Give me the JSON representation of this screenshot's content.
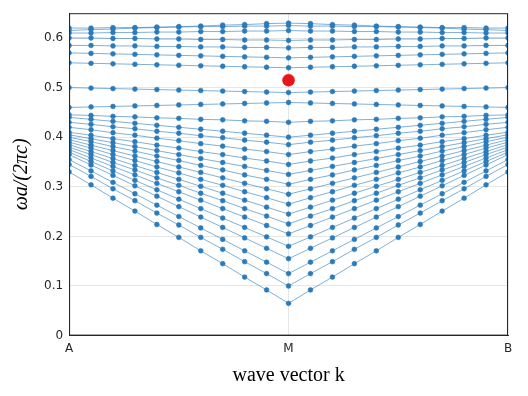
{
  "chart_data": {
    "type": "line",
    "x_label": "wave vector k",
    "y_label": "ωa/(2πc)",
    "categories": [
      "A",
      null,
      null,
      null,
      null,
      null,
      null,
      null,
      null,
      null,
      "M",
      null,
      null,
      null,
      null,
      null,
      null,
      null,
      null,
      null,
      "B"
    ],
    "ylim": [
      0,
      0.65
    ],
    "yticks": [
      0,
      0.1,
      0.2,
      0.3,
      0.4,
      0.5,
      0.6
    ],
    "grid": true,
    "color": "#2b7bba",
    "marker": "circle",
    "line_style": "solid",
    "series": [
      {
        "values": [
          0.33,
          0.304,
          0.277,
          0.251,
          0.224,
          0.198,
          0.171,
          0.145,
          0.118,
          0.092,
          0.065,
          0.092,
          0.118,
          0.145,
          0.171,
          0.198,
          0.224,
          0.251,
          0.277,
          0.304,
          0.33
        ]
      },
      {
        "values": [
          0.345,
          0.321,
          0.296,
          0.272,
          0.247,
          0.223,
          0.198,
          0.174,
          0.149,
          0.125,
          0.1,
          0.125,
          0.149,
          0.174,
          0.198,
          0.223,
          0.247,
          0.272,
          0.296,
          0.321,
          0.345
        ]
      },
      {
        "values": [
          0.355,
          0.332,
          0.309,
          0.286,
          0.263,
          0.24,
          0.217,
          0.194,
          0.171,
          0.148,
          0.125,
          0.148,
          0.171,
          0.194,
          0.217,
          0.24,
          0.263,
          0.286,
          0.309,
          0.332,
          0.355
        ]
      },
      {
        "values": [
          0.365,
          0.344,
          0.323,
          0.302,
          0.281,
          0.26,
          0.239,
          0.218,
          0.197,
          0.176,
          0.155,
          0.176,
          0.197,
          0.218,
          0.239,
          0.26,
          0.281,
          0.302,
          0.323,
          0.344,
          0.365
        ]
      },
      {
        "values": [
          0.37,
          0.351,
          0.332,
          0.313,
          0.294,
          0.275,
          0.256,
          0.237,
          0.218,
          0.199,
          0.18,
          0.199,
          0.218,
          0.237,
          0.256,
          0.275,
          0.294,
          0.313,
          0.332,
          0.351,
          0.37
        ]
      },
      {
        "values": [
          0.375,
          0.358,
          0.341,
          0.324,
          0.307,
          0.29,
          0.273,
          0.256,
          0.239,
          0.222,
          0.205,
          0.222,
          0.239,
          0.256,
          0.273,
          0.29,
          0.307,
          0.324,
          0.341,
          0.358,
          0.375
        ]
      },
      {
        "values": [
          0.38,
          0.365,
          0.349,
          0.334,
          0.318,
          0.303,
          0.287,
          0.272,
          0.256,
          0.241,
          0.225,
          0.241,
          0.256,
          0.272,
          0.287,
          0.303,
          0.318,
          0.334,
          0.349,
          0.365,
          0.38
        ]
      },
      {
        "values": [
          0.385,
          0.371,
          0.357,
          0.343,
          0.329,
          0.315,
          0.301,
          0.287,
          0.273,
          0.259,
          0.245,
          0.259,
          0.273,
          0.287,
          0.301,
          0.315,
          0.329,
          0.343,
          0.357,
          0.371,
          0.385
        ]
      },
      {
        "values": [
          0.39,
          0.378,
          0.365,
          0.353,
          0.34,
          0.328,
          0.315,
          0.303,
          0.29,
          0.278,
          0.265,
          0.278,
          0.29,
          0.303,
          0.315,
          0.328,
          0.34,
          0.353,
          0.365,
          0.378,
          0.39
        ]
      },
      {
        "values": [
          0.395,
          0.384,
          0.373,
          0.362,
          0.351,
          0.34,
          0.329,
          0.318,
          0.307,
          0.296,
          0.285,
          0.296,
          0.307,
          0.318,
          0.329,
          0.34,
          0.351,
          0.362,
          0.373,
          0.384,
          0.395
        ]
      },
      {
        "values": [
          0.4,
          0.391,
          0.381,
          0.372,
          0.362,
          0.353,
          0.343,
          0.334,
          0.324,
          0.315,
          0.305,
          0.315,
          0.324,
          0.334,
          0.343,
          0.353,
          0.362,
          0.372,
          0.381,
          0.391,
          0.4
        ]
      },
      {
        "values": [
          0.405,
          0.397,
          0.389,
          0.381,
          0.373,
          0.365,
          0.357,
          0.349,
          0.341,
          0.333,
          0.325,
          0.333,
          0.341,
          0.349,
          0.357,
          0.365,
          0.373,
          0.381,
          0.389,
          0.397,
          0.405
        ]
      },
      {
        "values": [
          0.41,
          0.404,
          0.397,
          0.391,
          0.384,
          0.378,
          0.371,
          0.365,
          0.358,
          0.352,
          0.345,
          0.352,
          0.358,
          0.365,
          0.371,
          0.378,
          0.384,
          0.391,
          0.397,
          0.404,
          0.41
        ]
      },
      {
        "values": [
          0.42,
          0.415,
          0.409,
          0.404,
          0.398,
          0.393,
          0.387,
          0.382,
          0.376,
          0.371,
          0.365,
          0.371,
          0.376,
          0.382,
          0.387,
          0.393,
          0.398,
          0.404,
          0.409,
          0.415,
          0.42
        ]
      },
      {
        "values": [
          0.43,
          0.426,
          0.421,
          0.417,
          0.412,
          0.408,
          0.403,
          0.399,
          0.394,
          0.39,
          0.385,
          0.39,
          0.394,
          0.399,
          0.403,
          0.408,
          0.412,
          0.417,
          0.421,
          0.426,
          0.43
        ]
      },
      {
        "values": [
          0.44,
          0.436,
          0.432,
          0.428,
          0.424,
          0.42,
          0.416,
          0.412,
          0.408,
          0.404,
          0.4,
          0.404,
          0.408,
          0.412,
          0.416,
          0.42,
          0.424,
          0.428,
          0.432,
          0.436,
          0.44
        ]
      },
      {
        "values": [
          0.445,
          0.444,
          0.442,
          0.441,
          0.439,
          0.438,
          0.436,
          0.435,
          0.433,
          0.432,
          0.43,
          0.432,
          0.433,
          0.435,
          0.436,
          0.438,
          0.439,
          0.441,
          0.442,
          0.444,
          0.445
        ]
      },
      {
        "values": [
          0.46,
          0.461,
          0.462,
          0.463,
          0.464,
          0.465,
          0.466,
          0.467,
          0.468,
          0.469,
          0.47,
          0.469,
          0.468,
          0.467,
          0.466,
          0.465,
          0.464,
          0.463,
          0.462,
          0.461,
          0.46
        ]
      },
      {
        "values": [
          0.5,
          0.499,
          0.498,
          0.497,
          0.496,
          0.495,
          0.494,
          0.493,
          0.492,
          0.491,
          0.49,
          0.491,
          0.492,
          0.493,
          0.494,
          0.495,
          0.496,
          0.497,
          0.498,
          0.499,
          0.5
        ]
      },
      {
        "values": [
          0.55,
          0.549,
          0.548,
          0.547,
          0.546,
          0.545,
          0.544,
          0.543,
          0.542,
          0.541,
          0.54,
          0.541,
          0.542,
          0.543,
          0.544,
          0.545,
          0.546,
          0.547,
          0.548,
          0.549,
          0.55
        ]
      },
      {
        "values": [
          0.57,
          0.569,
          0.568,
          0.567,
          0.566,
          0.565,
          0.564,
          0.563,
          0.562,
          0.561,
          0.56,
          0.561,
          0.562,
          0.563,
          0.564,
          0.565,
          0.566,
          0.567,
          0.568,
          0.569,
          0.57
        ]
      },
      {
        "values": [
          0.585,
          0.585,
          0.584,
          0.584,
          0.583,
          0.583,
          0.582,
          0.582,
          0.581,
          0.581,
          0.58,
          0.581,
          0.581,
          0.582,
          0.582,
          0.583,
          0.583,
          0.584,
          0.584,
          0.585,
          0.585
        ]
      },
      {
        "values": [
          0.6,
          0.6,
          0.599,
          0.599,
          0.598,
          0.598,
          0.597,
          0.597,
          0.596,
          0.596,
          0.595,
          0.596,
          0.596,
          0.597,
          0.597,
          0.598,
          0.598,
          0.599,
          0.599,
          0.6,
          0.6
        ]
      },
      {
        "values": [
          0.61,
          0.61,
          0.611,
          0.611,
          0.612,
          0.612,
          0.613,
          0.613,
          0.614,
          0.614,
          0.615,
          0.614,
          0.614,
          0.613,
          0.613,
          0.612,
          0.612,
          0.611,
          0.611,
          0.61,
          0.61
        ]
      },
      {
        "values": [
          0.615,
          0.617,
          0.618,
          0.62,
          0.621,
          0.623,
          0.624,
          0.626,
          0.627,
          0.629,
          0.63,
          0.629,
          0.627,
          0.626,
          0.624,
          0.623,
          0.621,
          0.62,
          0.618,
          0.617,
          0.615
        ]
      },
      {
        "values": [
          0.62,
          0.62,
          0.621,
          0.621,
          0.622,
          0.622,
          0.623,
          0.623,
          0.624,
          0.624,
          0.625,
          0.624,
          0.624,
          0.623,
          0.623,
          0.622,
          0.622,
          0.621,
          0.621,
          0.62,
          0.62
        ]
      },
      {
        "color": "#e8141c",
        "marker": "circle",
        "line_style": "none",
        "values": [
          null,
          null,
          null,
          null,
          null,
          null,
          null,
          null,
          null,
          null,
          0.515,
          null,
          null,
          null,
          null,
          null,
          null,
          null,
          null,
          null,
          null
        ]
      }
    ]
  }
}
